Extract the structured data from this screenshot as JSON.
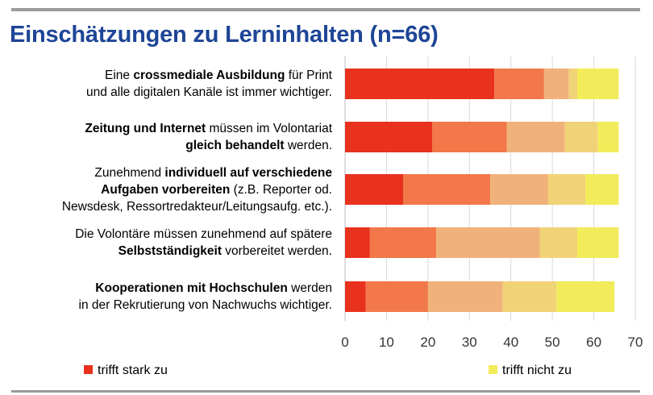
{
  "title": "Einschätzungen zu Lerninhalten (n=66)",
  "categories": [
    [
      {
        "t": "Eine "
      },
      {
        "t": "crossmediale Ausbildung",
        "b": true
      },
      {
        "t": " für Print"
      },
      {
        "br": true
      },
      {
        "t": "und alle digitalen Kanäle ist immer wichtiger."
      }
    ],
    [
      {
        "t": "Zeitung und Internet",
        "b": true
      },
      {
        "t": " müssen im Volontariat"
      },
      {
        "br": true
      },
      {
        "t": "gleich behandelt",
        "b": true
      },
      {
        "t": " werden."
      }
    ],
    [
      {
        "t": "Zunehmend "
      },
      {
        "t": "individuell auf verschiedene",
        "b": true
      },
      {
        "br": true
      },
      {
        "t": "Aufgaben vorbereiten",
        "b": true
      },
      {
        "t": " (z.B. Reporter od."
      },
      {
        "br": true
      },
      {
        "t": "Newsdesk, Ressortredakteur/Leitungsaufg. etc.)."
      }
    ],
    [
      {
        "t": "Die Volontäre müssen zunehmend auf spätere"
      },
      {
        "br": true
      },
      {
        "t": "Selbstständigkeit",
        "b": true
      },
      {
        "t": " vorbereitet werden."
      }
    ],
    [
      {
        "t": "Kooperationen mit Hochschulen",
        "b": true
      },
      {
        "t": " werden"
      },
      {
        "br": true
      },
      {
        "t": "in der Rekrutierung von Nachwuchs wichtiger."
      }
    ]
  ],
  "chart_data": {
    "type": "bar",
    "orientation": "horizontal",
    "stacked": true,
    "xlim": [
      0,
      70
    ],
    "xticks": [
      "0",
      "10",
      "20",
      "30",
      "40",
      "50",
      "60",
      "70"
    ],
    "grid": true,
    "legend_position": "bottom",
    "series": [
      {
        "name": "trifft stark zu",
        "color": "#e8321e",
        "values": [
          36,
          21,
          14,
          6,
          5
        ]
      },
      {
        "color": "#f2784a",
        "values": [
          12,
          18,
          21,
          16,
          15
        ]
      },
      {
        "color": "#f0b27a",
        "values": [
          6,
          14,
          14,
          25,
          18
        ]
      },
      {
        "color": "#f1d377",
        "values": [
          2,
          8,
          9,
          9,
          13
        ]
      },
      {
        "name": "trifft nicht zu",
        "color": "#f2ec5a",
        "values": [
          10,
          5,
          8,
          10,
          14
        ]
      }
    ]
  }
}
